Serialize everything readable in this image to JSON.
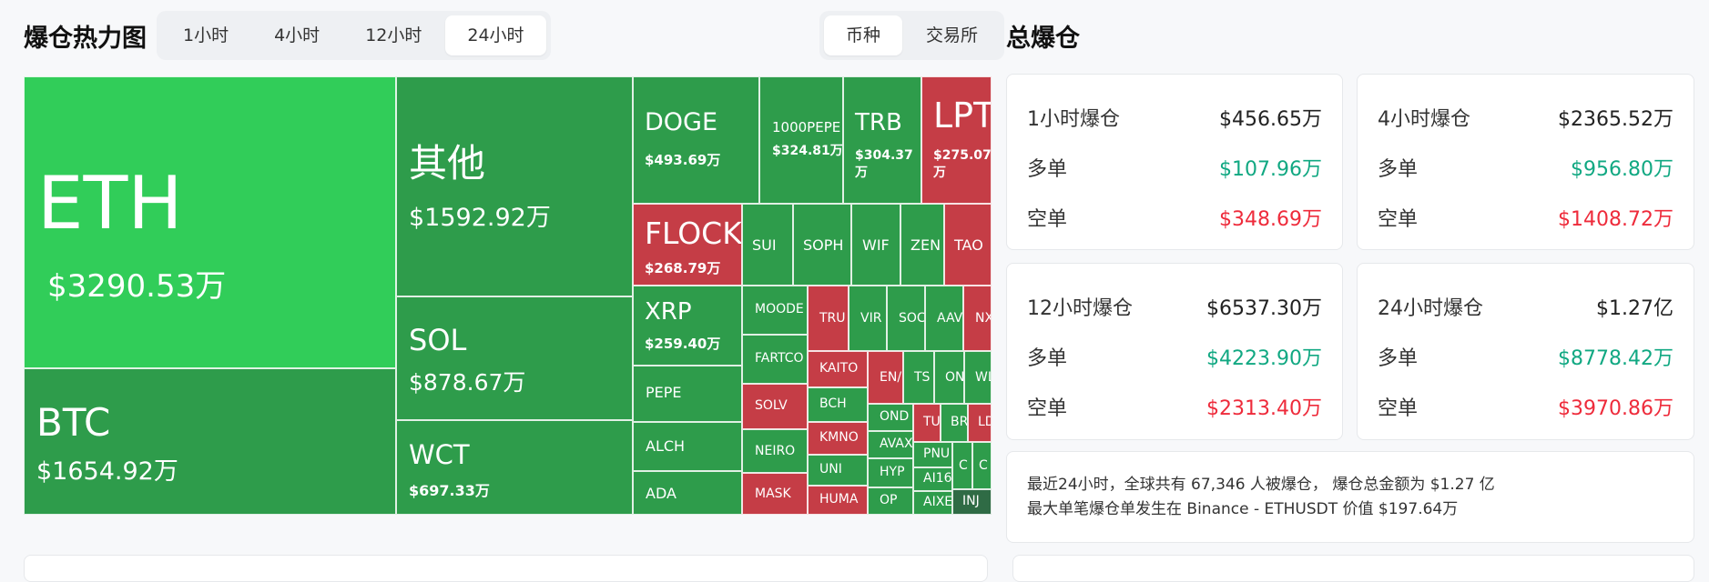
{
  "header": {
    "title": "爆仓热力图"
  },
  "time_tabs": [
    {
      "label": "1小时"
    },
    {
      "label": "4小时"
    },
    {
      "label": "12小时"
    },
    {
      "label": "24小时",
      "active": true
    }
  ],
  "group_tabs": [
    {
      "label": "币种",
      "active": true
    },
    {
      "label": "交易所"
    }
  ],
  "colors": {
    "long_green": "#2e9c4b",
    "eth_green": "#31cd59",
    "short_red": "#c53d46",
    "up_text": "#11a882",
    "down_text": "#ee2b3b"
  },
  "treemap": {
    "ETH": {
      "symbol": "ETH",
      "value": "$3290.53万"
    },
    "BTC": {
      "symbol": "BTC",
      "value": "$1654.92万"
    },
    "OTHER": {
      "symbol": "其他",
      "value": "$1592.92万"
    },
    "SOL": {
      "symbol": "SOL",
      "value": "$878.67万"
    },
    "WCT": {
      "symbol": "WCT",
      "value": "$697.33万"
    },
    "DOGE": {
      "symbol": "DOGE",
      "value": "$493.69万"
    },
    "PEPE1000": {
      "symbol": "1000PEPE",
      "value": "$324.81万"
    },
    "TRB": {
      "symbol": "TRB",
      "value": "$304.37万"
    },
    "LPT": {
      "symbol": "LPT",
      "value": "$275.07万"
    },
    "FLOCK": {
      "symbol": "FLOCK",
      "value": "$268.79万"
    },
    "XRP": {
      "symbol": "XRP",
      "value": "$259.40万"
    },
    "SUI": {
      "symbol": "SUI"
    },
    "SOPH": {
      "symbol": "SOPH"
    },
    "WIF": {
      "symbol": "WIF"
    },
    "ZEN": {
      "symbol": "ZEN"
    },
    "TAO": {
      "symbol": "TAO"
    },
    "PEPE": {
      "symbol": "PEPE"
    },
    "ALCH": {
      "symbol": "ALCH"
    },
    "ADA": {
      "symbol": "ADA"
    },
    "MOODE": {
      "symbol": "MOODE"
    },
    "FARTCO": {
      "symbol": "FARTCO"
    },
    "SOLV": {
      "symbol": "SOLV"
    },
    "NEIRO": {
      "symbol": "NEIRO"
    },
    "MASK": {
      "symbol": "MASK"
    },
    "TRU": {
      "symbol": "TRU"
    },
    "VIR": {
      "symbol": "VIR"
    },
    "SOC": {
      "symbol": "SOC"
    },
    "AAV": {
      "symbol": "AAV"
    },
    "NX": {
      "symbol": "NX"
    },
    "KAITO": {
      "symbol": "KAITO"
    },
    "BCH": {
      "symbol": "BCH"
    },
    "KMNO": {
      "symbol": "KMNO"
    },
    "UNI": {
      "symbol": "UNI"
    },
    "HUMA": {
      "symbol": "HUMA"
    },
    "ENA": {
      "symbol": "EN/"
    },
    "TS": {
      "symbol": "TS"
    },
    "ON": {
      "symbol": "ON"
    },
    "WL": {
      "symbol": "WL"
    },
    "OND": {
      "symbol": "OND"
    },
    "AVAX": {
      "symbol": "AVAX"
    },
    "HYP": {
      "symbol": "HYP"
    },
    "OP": {
      "symbol": "OP"
    },
    "TU": {
      "symbol": "TU"
    },
    "BR": {
      "symbol": "BR"
    },
    "LD": {
      "symbol": "LD"
    },
    "PNU": {
      "symbol": "PNU"
    },
    "AI16": {
      "symbol": "AI16"
    },
    "AIXE": {
      "symbol": "AIXE"
    },
    "C1": {
      "symbol": "C"
    },
    "C2": {
      "symbol": "C"
    },
    "INJ": {
      "symbol": "INJ"
    }
  },
  "side": {
    "title": "总爆仓",
    "labels": {
      "long": "多单",
      "short": "空单"
    },
    "cards": [
      {
        "label": "1小时爆仓",
        "total": "$456.65万",
        "long": "$107.96万",
        "short": "$348.69万"
      },
      {
        "label": "4小时爆仓",
        "total": "$2365.52万",
        "long": "$956.80万",
        "short": "$1408.72万"
      },
      {
        "label": "12小时爆仓",
        "total": "$6537.30万",
        "long": "$4223.90万",
        "short": "$2313.40万"
      },
      {
        "label": "24小时爆仓",
        "total": "$1.27亿",
        "long": "$8778.42万",
        "short": "$3970.86万"
      }
    ]
  },
  "summary": {
    "line1": "最近24小时，全球共有 67,346 人被爆仓， 爆仓总金额为 $1.27 亿",
    "line2": "最大单笔爆仓单发生在 Binance - ETHUSDT 价值 $197.64万"
  }
}
